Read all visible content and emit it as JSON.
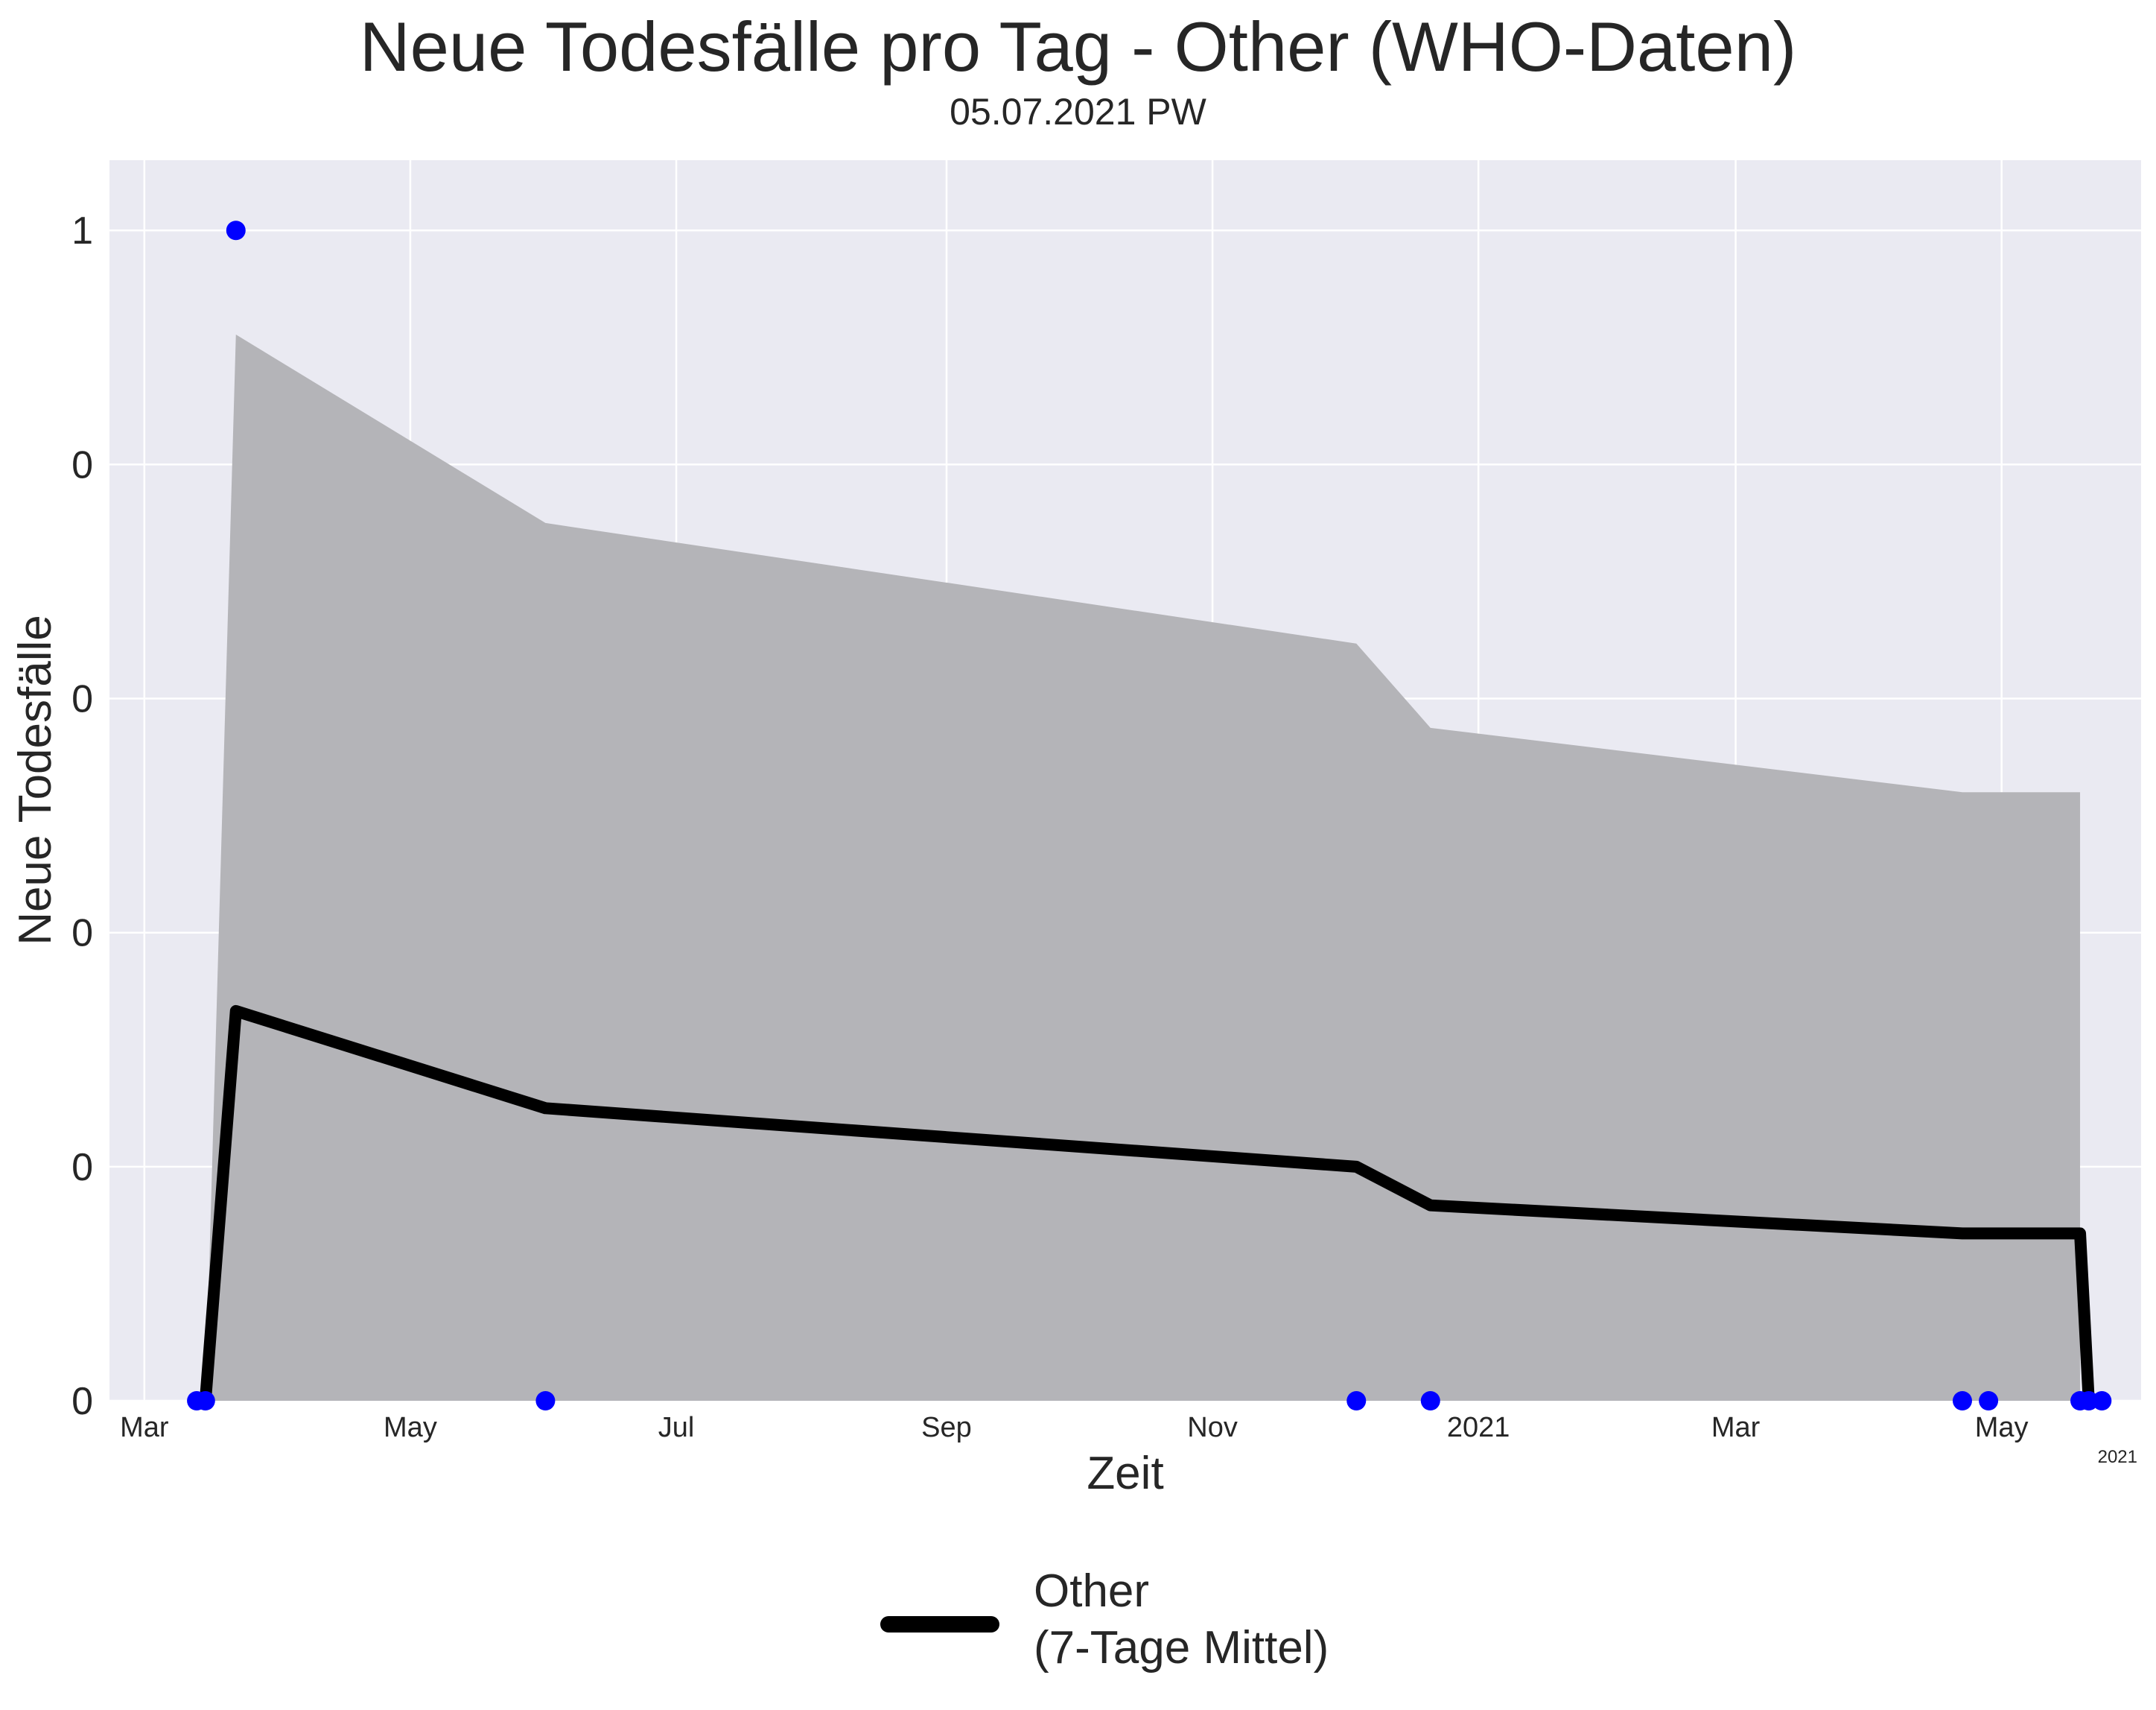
{
  "title": "Neue Todesfälle pro Tag - Other (WHO-Daten)",
  "subtitle": "05.07.2021 PW",
  "chart_data": {
    "type": "line",
    "xlabel": "Zeit",
    "ylabel": "Neue Todesfälle",
    "x_ticks": [
      "Mar",
      "May",
      "Jul",
      "Sep",
      "Nov",
      "2021",
      "Mar",
      "May"
    ],
    "x_tick_dates": [
      "2020-03-01",
      "2020-05-01",
      "2020-07-01",
      "2020-09-01",
      "2020-11-01",
      "2021-01-01",
      "2021-03-01",
      "2021-05-01"
    ],
    "x_offset_label": "2021",
    "y_ticks": [
      "0",
      "0",
      "0",
      "0",
      "0",
      "1"
    ],
    "y_tick_values": [
      0,
      0.2,
      0.4,
      0.6,
      0.8,
      1.0
    ],
    "ylim": [
      0,
      1.06
    ],
    "xlim": [
      "2020-02-22",
      "2021-06-02"
    ],
    "grid": true,
    "background": "#eaeaf2",
    "series": [
      {
        "name": "Other\n(7-Tage Mittel)",
        "legend_lines": [
          "Other",
          "(7-Tage Mittel)"
        ],
        "color": "#000000",
        "x": [
          "2020-03-13",
          "2020-03-15",
          "2020-03-22",
          "2020-06-01",
          "2020-12-04",
          "2020-12-21",
          "2021-04-22",
          "2021-05-19",
          "2021-05-21"
        ],
        "y": [
          0,
          0,
          0.333,
          0.25,
          0.2,
          0.167,
          0.143,
          0.143,
          0
        ]
      }
    ],
    "band": {
      "color": "#b4b4b8",
      "x": [
        "2020-03-15",
        "2020-03-22",
        "2020-06-01",
        "2020-12-04",
        "2020-12-21",
        "2021-04-22",
        "2021-05-19"
      ],
      "upper": [
        0,
        0.911,
        0.75,
        0.647,
        0.575,
        0.52,
        0.52
      ]
    },
    "points": {
      "color": "#0000ff",
      "x": [
        "2020-03-13",
        "2020-03-15",
        "2020-03-22",
        "2020-06-01",
        "2020-12-04",
        "2020-12-21",
        "2021-04-22",
        "2021-04-28",
        "2021-05-19",
        "2021-05-21",
        "2021-05-24"
      ],
      "y": [
        0,
        0,
        1,
        0,
        0,
        0,
        0,
        0,
        0,
        0,
        0
      ]
    }
  }
}
